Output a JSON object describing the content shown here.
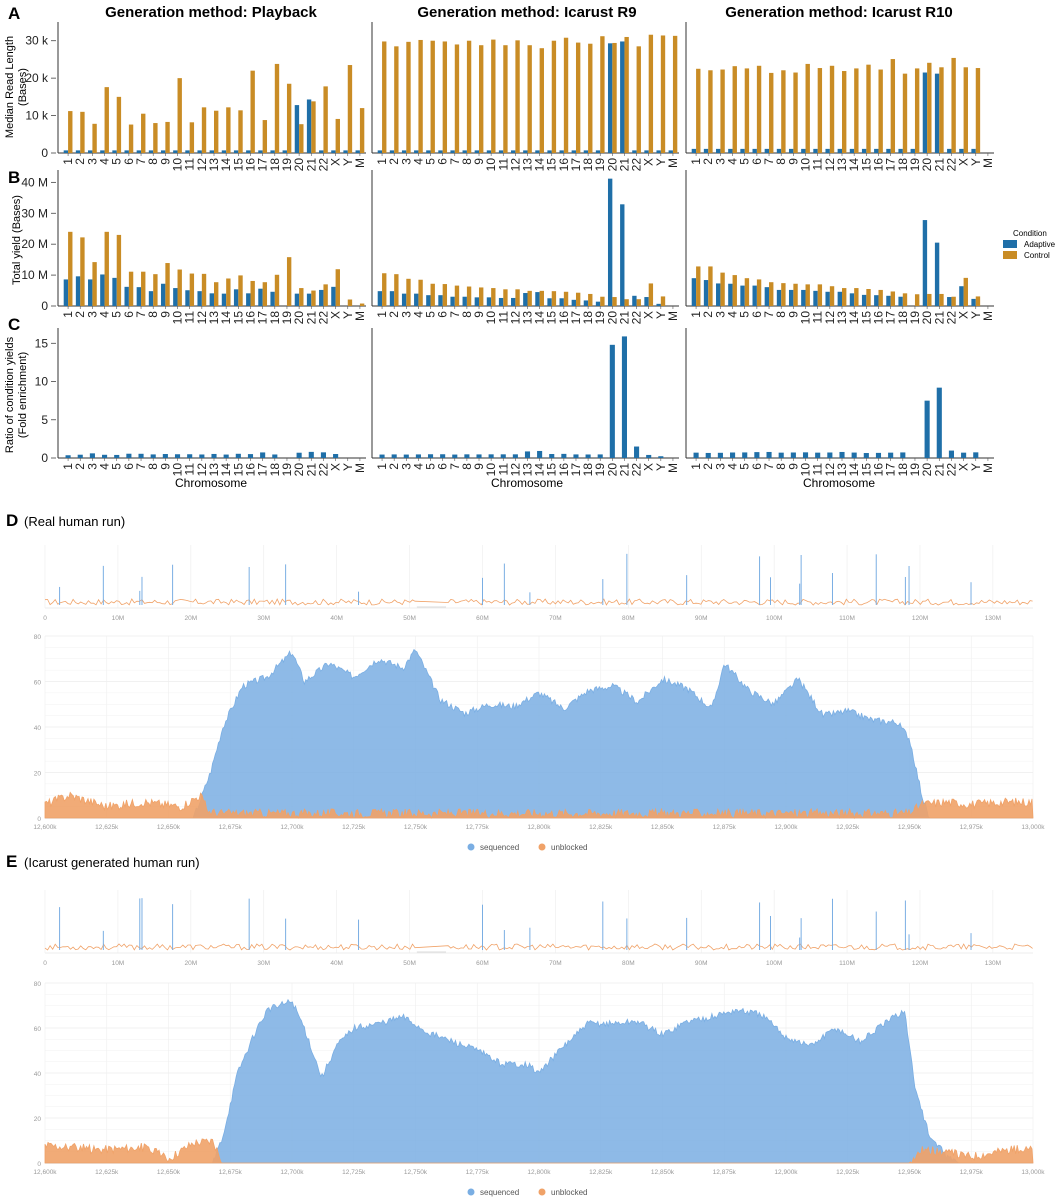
{
  "panel_letters": {
    "a": "A",
    "b": "B",
    "c": "C",
    "d": "D",
    "e": "E"
  },
  "facet_titles": [
    "Generation method: Playback",
    "Generation method: Icarust R9",
    "Generation method: Icarust R10"
  ],
  "legend": {
    "title": "Condition",
    "adaptive": "Adaptive",
    "control": "Control"
  },
  "colors": {
    "adaptive": "#1f6fa8",
    "control": "#c98c25",
    "sequenced": "#7aaee3",
    "unblocked": "#f0a268"
  },
  "section_d_title": "(Real human run)",
  "section_e_title": "(Icarust generated human run)",
  "track_legend": {
    "sequenced": "sequenced",
    "unblocked": "unblocked"
  },
  "chart_data": [
    {
      "type": "bar",
      "panel": "A",
      "ylabel": "Median Read Length\n(Bases)",
      "ylim": [
        0,
        35000
      ],
      "yticks": [
        0,
        10000,
        20000,
        30000
      ],
      "ytick_labels": [
        "0",
        "10 k",
        "20 k",
        "30 k"
      ],
      "categories": [
        "1",
        "2",
        "3",
        "4",
        "5",
        "6",
        "7",
        "8",
        "9",
        "10",
        "11",
        "12",
        "13",
        "14",
        "15",
        "16",
        "17",
        "18",
        "19",
        "20",
        "21",
        "22",
        "X",
        "Y",
        "M"
      ],
      "facets": [
        {
          "name": "Generation method: Playback",
          "series": [
            {
              "name": "Adaptive",
              "values": [
                700,
                700,
                700,
                700,
                700,
                700,
                700,
                700,
                700,
                700,
                700,
                700,
                700,
                700,
                700,
                700,
                700,
                700,
                700,
                12800,
                14300,
                700,
                700,
                700,
                700
              ]
            },
            {
              "name": "Control",
              "values": [
                11200,
                11000,
                7800,
                17600,
                15000,
                7600,
                10500,
                8000,
                8300,
                20000,
                8200,
                12200,
                11300,
                12200,
                11400,
                22000,
                8800,
                23800,
                18500,
                7700,
                13800,
                17800,
                9100,
                23500,
                12000
              ]
            }
          ]
        },
        {
          "name": "Generation method: Icarust R9",
          "series": [
            {
              "name": "Adaptive",
              "values": [
                700,
                700,
                700,
                700,
                700,
                700,
                700,
                700,
                700,
                700,
                700,
                700,
                700,
                700,
                700,
                700,
                700,
                700,
                700,
                29300,
                29800,
                700,
                700,
                700,
                700
              ]
            },
            {
              "name": "Control",
              "values": [
                29800,
                28500,
                29700,
                30200,
                30000,
                29800,
                29000,
                30000,
                28800,
                30300,
                28800,
                30100,
                28800,
                28000,
                30000,
                30800,
                29500,
                29200,
                31200,
                29400,
                31000,
                28500,
                31600,
                31400,
                31300
              ]
            }
          ]
        },
        {
          "name": "Generation method: Icarust R10",
          "series": [
            {
              "name": "Adaptive",
              "values": [
                1100,
                1100,
                1100,
                1100,
                1100,
                1100,
                1100,
                1100,
                1100,
                1100,
                1100,
                1100,
                1100,
                1100,
                1100,
                1100,
                1100,
                1100,
                1100,
                21500,
                21200,
                1100,
                1100,
                1100,
                null
              ]
            },
            {
              "name": "Control",
              "values": [
                22500,
                22100,
                22300,
                23200,
                22600,
                23300,
                21400,
                22100,
                21500,
                23800,
                22700,
                23300,
                21900,
                22600,
                23600,
                22300,
                25100,
                21200,
                22600,
                24100,
                22900,
                25400,
                22900,
                22700,
                null
              ]
            }
          ]
        }
      ]
    },
    {
      "type": "bar",
      "panel": "B",
      "ylabel": "Total yield (Bases)",
      "ylim": [
        0,
        44000000
      ],
      "yticks": [
        0,
        10000000,
        20000000,
        30000000,
        40000000
      ],
      "ytick_labels": [
        "0",
        "10 M",
        "20 M",
        "30 M",
        "40 M"
      ],
      "categories": [
        "1",
        "2",
        "3",
        "4",
        "5",
        "6",
        "7",
        "8",
        "9",
        "10",
        "11",
        "12",
        "13",
        "14",
        "15",
        "16",
        "17",
        "18",
        "19",
        "20",
        "21",
        "22",
        "X",
        "Y",
        "M"
      ],
      "facets": [
        {
          "name": "Generation method: Playback",
          "series": [
            {
              "name": "Adaptive",
              "values": [
                8600,
                9600,
                8600,
                10200,
                9100,
                6200,
                6100,
                4800,
                7200,
                5800,
                5100,
                4800,
                4100,
                4000,
                5400,
                4100,
                5600,
                4600,
                null,
                4000,
                4000,
                5200,
                6200,
                null,
                null
              ]
            },
            {
              "name": "Control",
              "values": [
                24000,
                22200,
                14200,
                24000,
                23000,
                11100,
                11100,
                10300,
                13900,
                11800,
                10500,
                10400,
                7700,
                8900,
                9900,
                8100,
                7700,
                10100,
                15800,
                5800,
                5000,
                7000,
                11900,
                2100,
                800
              ]
            }
          ]
        },
        {
          "name": "Generation method: Icarust R9",
          "series": [
            {
              "name": "Adaptive",
              "values": [
                4800,
                4800,
                4000,
                4000,
                3500,
                3500,
                3000,
                3000,
                2800,
                2800,
                2600,
                2600,
                4200,
                4500,
                2500,
                2500,
                2000,
                1800,
                1400,
                41200,
                32900,
                3300,
                2900,
                700,
                null
              ]
            },
            {
              "name": "Control",
              "values": [
                10600,
                10300,
                8800,
                8500,
                7200,
                7100,
                6600,
                6300,
                6000,
                5800,
                5400,
                5400,
                4900,
                4900,
                4800,
                4600,
                4300,
                3900,
                3000,
                2900,
                2200,
                2200,
                7300,
                3100,
                null
              ]
            }
          ]
        },
        {
          "name": "Generation method: Icarust R10",
          "series": [
            {
              "name": "Adaptive",
              "values": [
                9000,
                8400,
                7300,
                7200,
                6600,
                6600,
                6100,
                5200,
                5200,
                5200,
                4900,
                4600,
                4600,
                4100,
                3600,
                3500,
                3300,
                3000,
                null,
                27800,
                20500,
                2900,
                6400,
                2300,
                null
              ]
            },
            {
              "name": "Control",
              "values": [
                12800,
                12800,
                10800,
                10000,
                9000,
                8600,
                7700,
                7400,
                7200,
                7000,
                7000,
                6400,
                5800,
                5800,
                5500,
                5200,
                4700,
                4100,
                3800,
                3900,
                3900,
                3000,
                9100,
                3100,
                null
              ]
            }
          ]
        }
      ],
      "value_unit": "thousand bases"
    },
    {
      "type": "bar",
      "panel": "C",
      "ylabel": "Ratio of condition yields\n(Fold enrichment)",
      "xlabel": "Chromosome",
      "ylim": [
        0,
        17
      ],
      "yticks": [
        0,
        5,
        10,
        15
      ],
      "ytick_labels": [
        "0",
        "5",
        "10",
        "15"
      ],
      "categories": [
        "1",
        "2",
        "3",
        "4",
        "5",
        "6",
        "7",
        "8",
        "9",
        "10",
        "11",
        "12",
        "13",
        "14",
        "15",
        "16",
        "17",
        "18",
        "19",
        "20",
        "21",
        "22",
        "X",
        "Y",
        "M"
      ],
      "facets": [
        {
          "name": "Generation method: Playback",
          "series": [
            {
              "name": "Adaptive",
              "values": [
                0.36,
                0.43,
                0.61,
                0.42,
                0.4,
                0.56,
                0.55,
                0.47,
                0.52,
                0.49,
                0.49,
                0.46,
                0.53,
                0.45,
                0.55,
                0.51,
                0.73,
                0.46,
                null,
                0.69,
                0.8,
                0.74,
                0.52,
                null,
                null
              ]
            }
          ]
        },
        {
          "name": "Generation method: Icarust R9",
          "series": [
            {
              "name": "Adaptive",
              "values": [
                0.45,
                0.47,
                0.45,
                0.47,
                0.49,
                0.49,
                0.45,
                0.48,
                0.47,
                0.48,
                0.48,
                0.48,
                0.86,
                0.92,
                0.52,
                0.54,
                0.47,
                0.46,
                0.47,
                14.8,
                15.9,
                1.5,
                0.4,
                0.23,
                null
              ]
            }
          ]
        },
        {
          "name": "Generation method: Icarust R10",
          "series": [
            {
              "name": "Adaptive",
              "values": [
                0.7,
                0.66,
                0.68,
                0.72,
                0.73,
                0.77,
                0.79,
                0.7,
                0.72,
                0.74,
                0.7,
                0.72,
                0.79,
                0.71,
                0.65,
                0.67,
                0.7,
                0.73,
                null,
                7.5,
                9.2,
                0.97,
                0.7,
                0.74,
                null
              ]
            }
          ]
        }
      ]
    },
    {
      "type": "area",
      "panel": "D",
      "title": "(Real human run)",
      "overview": {
        "x_ticks": [
          "0",
          "10M",
          "20M",
          "30M",
          "40M",
          "50M",
          "60M",
          "70M",
          "80M",
          "90M",
          "100M",
          "110M",
          "120M",
          "130M"
        ],
        "gap_mb": [
          51,
          55
        ]
      },
      "xlim": [
        12600000,
        13000000
      ],
      "ylim": [
        0,
        80
      ],
      "yticks": [
        0,
        20,
        40,
        60,
        80
      ],
      "xticks": [
        "12,600k",
        "12,625k",
        "12,650k",
        "12,675k",
        "12,700k",
        "12,725k",
        "12,750k",
        "12,775k",
        "12,800k",
        "12,825k",
        "12,850k",
        "12,875k",
        "12,900k",
        "12,925k",
        "12,950k",
        "12,975k",
        "13,000k"
      ],
      "series": [
        {
          "name": "sequenced",
          "x_kb": [
            12600,
            12660,
            12663,
            12667,
            12672,
            12680,
            12690,
            12700,
            12705,
            12715,
            12725,
            12735,
            12745,
            12750,
            12760,
            12770,
            12780,
            12790,
            12800,
            12810,
            12820,
            12830,
            12840,
            12850,
            12860,
            12870,
            12875,
            12885,
            12895,
            12905,
            12915,
            12925,
            12935,
            12945,
            12950,
            12955,
            12958,
            13000
          ],
          "y": [
            0,
            0,
            8,
            20,
            40,
            58,
            62,
            73,
            60,
            68,
            62,
            70,
            66,
            74,
            52,
            46,
            50,
            49,
            55,
            48,
            56,
            58,
            51,
            61,
            57,
            48,
            68,
            56,
            50,
            61,
            45,
            47,
            43,
            42,
            35,
            10,
            0,
            0
          ]
        },
        {
          "name": "unblocked",
          "x_kb": [
            12600,
            12610,
            12625,
            12640,
            12655,
            12663,
            12666,
            12670,
            12700,
            12800,
            12900,
            12950,
            12955,
            12965,
            12975,
            12990,
            13000
          ],
          "y": [
            6,
            10,
            5,
            7,
            5,
            10,
            3,
            2,
            2,
            2,
            2,
            2,
            6,
            7,
            6,
            7,
            7
          ]
        }
      ]
    },
    {
      "type": "area",
      "panel": "E",
      "title": "(Icarust generated human run)",
      "overview": {
        "x_ticks": [
          "0",
          "10M",
          "20M",
          "30M",
          "40M",
          "50M",
          "60M",
          "70M",
          "80M",
          "90M",
          "100M",
          "110M",
          "120M",
          "130M"
        ],
        "gap_mb": [
          51,
          55
        ]
      },
      "xlim": [
        12600000,
        13000000
      ],
      "ylim": [
        0,
        80
      ],
      "yticks": [
        0,
        20,
        40,
        60,
        80
      ],
      "xticks": [
        "12,600k",
        "12,625k",
        "12,650k",
        "12,675k",
        "12,700k",
        "12,725k",
        "12,750k",
        "12,775k",
        "12,800k",
        "12,825k",
        "12,850k",
        "12,875k",
        "12,900k",
        "12,925k",
        "12,950k",
        "12,975k",
        "13,000k"
      ],
      "series": [
        {
          "name": "sequenced",
          "x_kb": [
            12600,
            12668,
            12672,
            12678,
            12685,
            12690,
            12700,
            12705,
            12712,
            12718,
            12725,
            12735,
            12745,
            12755,
            12765,
            12775,
            12785,
            12795,
            12800,
            12810,
            12820,
            12830,
            12840,
            12850,
            12860,
            12870,
            12880,
            12890,
            12900,
            12910,
            12920,
            12930,
            12940,
            12948,
            12952,
            12958,
            12965,
            12970,
            13000
          ],
          "y": [
            0,
            0,
            12,
            40,
            58,
            68,
            72,
            60,
            38,
            52,
            60,
            62,
            65,
            58,
            54,
            50,
            44,
            44,
            40,
            52,
            62,
            62,
            63,
            57,
            63,
            65,
            68,
            66,
            56,
            52,
            60,
            54,
            62,
            68,
            35,
            12,
            3,
            0,
            0
          ]
        },
        {
          "name": "unblocked",
          "x_kb": [
            12600,
            12620,
            12640,
            12650,
            12660,
            12668,
            12672,
            12700,
            12800,
            12900,
            12950,
            12955,
            12962,
            12975,
            12990,
            13000
          ],
          "y": [
            8,
            6,
            7,
            2,
            9,
            10,
            0,
            0,
            0,
            0,
            0,
            6,
            5,
            3,
            6,
            6
          ]
        }
      ]
    }
  ]
}
